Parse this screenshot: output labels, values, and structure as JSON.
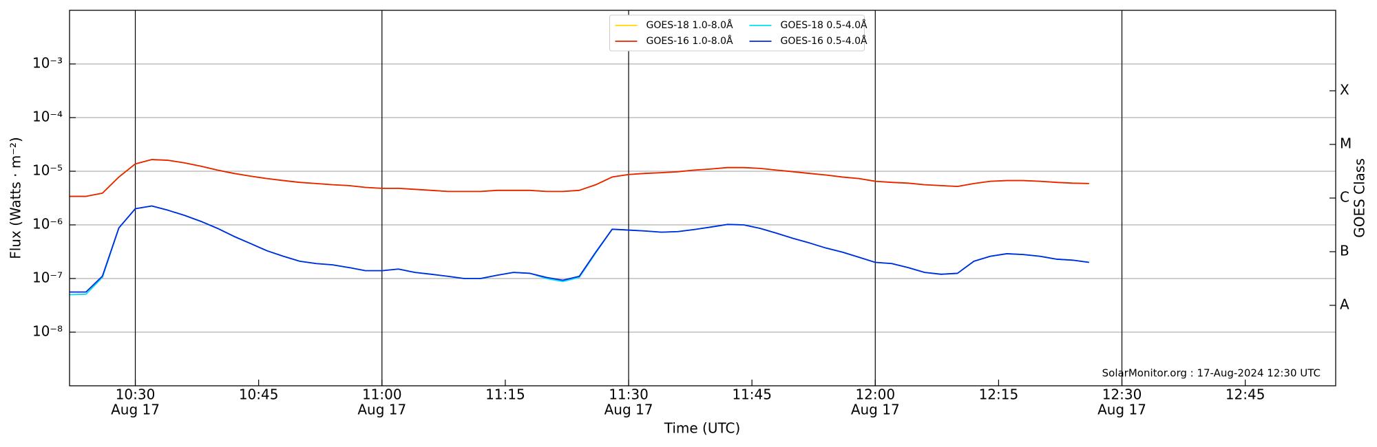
{
  "chart_data": {
    "type": "line",
    "ylabel": "Flux (Watts · m⁻²)",
    "xlabel": "Time (UTC)",
    "y2label": "GOES Class",
    "annotation": "SolarMonitor.org : 17-Aug-2024 12:30 UTC",
    "yscale": "log",
    "grid": true,
    "legend": "upper center",
    "xlim": [
      "10:22",
      "12:56"
    ],
    "xticks": [
      "10:30",
      "10:45",
      "11:00",
      "11:15",
      "11:30",
      "11:45",
      "12:00",
      "12:15",
      "12:30",
      "12:45"
    ],
    "xtick_dates": [
      "Aug 17",
      null,
      "Aug 17",
      null,
      "Aug 17",
      null,
      "Aug 17",
      null,
      "Aug 17",
      null
    ],
    "ylim": [
      1e-09,
      0.01
    ],
    "yticks": [
      {
        "value": 1e-08,
        "label": "10⁻⁸"
      },
      {
        "value": 1e-07,
        "label": "10⁻⁷"
      },
      {
        "value": 1e-06,
        "label": "10⁻⁶"
      },
      {
        "value": 1e-05,
        "label": "10⁻⁵"
      },
      {
        "value": 0.0001,
        "label": "10⁻⁴"
      },
      {
        "value": 0.001,
        "label": "10⁻³"
      }
    ],
    "y2lim": [
      1e-09,
      0.01
    ],
    "y2ticks": [
      {
        "value": 3.1623e-08,
        "label": "A"
      },
      {
        "value": 3.1623e-07,
        "label": "B"
      },
      {
        "value": 3.1623e-06,
        "label": "C"
      },
      {
        "value": 3.1623e-05,
        "label": "M"
      },
      {
        "value": 0.00031623,
        "label": "X"
      }
    ],
    "x": [
      "10:22",
      "10:24",
      "10:26",
      "10:28",
      "10:30",
      "10:32",
      "10:34",
      "10:36",
      "10:38",
      "10:40",
      "10:42",
      "10:44",
      "10:46",
      "10:48",
      "10:50",
      "10:52",
      "10:54",
      "10:56",
      "10:58",
      "11:00",
      "11:02",
      "11:04",
      "11:06",
      "11:08",
      "11:10",
      "11:12",
      "11:14",
      "11:16",
      "11:18",
      "11:20",
      "11:22",
      "11:24",
      "11:26",
      "11:28",
      "11:30",
      "11:32",
      "11:34",
      "11:36",
      "11:38",
      "11:40",
      "11:42",
      "11:44",
      "11:46",
      "11:48",
      "11:50",
      "11:52",
      "11:54",
      "11:56",
      "11:58",
      "12:00",
      "12:02",
      "12:04",
      "12:06",
      "12:08",
      "12:10",
      "12:12",
      "12:14",
      "12:16",
      "12:18",
      "12:20",
      "12:22",
      "12:24",
      "12:26"
    ],
    "series": [
      {
        "name": "GOES-18 1.0-8.0Å",
        "color": "#ffd700",
        "values": [
          3.4e-06,
          3.4e-06,
          3.9e-06,
          7.8e-06,
          1.37e-05,
          1.65e-05,
          1.6e-05,
          1.43e-05,
          1.24e-05,
          1.05e-05,
          9.1e-06,
          8.1e-06,
          7.3e-06,
          6.7e-06,
          6.2e-06,
          5.9e-06,
          5.6e-06,
          5.4e-06,
          5e-06,
          4.8e-06,
          4.8e-06,
          4.6e-06,
          4.4e-06,
          4.2e-06,
          4.2e-06,
          4.2e-06,
          4.4e-06,
          4.4e-06,
          4.4e-06,
          4.2e-06,
          4.2e-06,
          4.4e-06,
          5.6e-06,
          7.8e-06,
          8.7e-06,
          9.1e-06,
          9.4e-06,
          9.8e-06,
          1.05e-05,
          1.1e-05,
          1.17e-05,
          1.17e-05,
          1.13e-05,
          1.05e-05,
          9.8e-06,
          9.1e-06,
          8.5e-06,
          7.8e-06,
          7.3e-06,
          6.5e-06,
          6.2e-06,
          6e-06,
          5.6e-06,
          5.4e-06,
          5.2e-06,
          5.9e-06,
          6.5e-06,
          6.7e-06,
          6.7e-06,
          6.5e-06,
          6.2e-06,
          6e-06,
          5.9e-06
        ]
      },
      {
        "name": "GOES-16 1.0-8.0Å",
        "color": "#e82000",
        "values": [
          3.4e-06,
          3.4e-06,
          3.9e-06,
          7.8e-06,
          1.37e-05,
          1.65e-05,
          1.6e-05,
          1.43e-05,
          1.24e-05,
          1.05e-05,
          9.1e-06,
          8.1e-06,
          7.3e-06,
          6.7e-06,
          6.2e-06,
          5.9e-06,
          5.6e-06,
          5.4e-06,
          5e-06,
          4.8e-06,
          4.8e-06,
          4.6e-06,
          4.4e-06,
          4.2e-06,
          4.2e-06,
          4.2e-06,
          4.4e-06,
          4.4e-06,
          4.4e-06,
          4.2e-06,
          4.2e-06,
          4.4e-06,
          5.6e-06,
          7.8e-06,
          8.7e-06,
          9.1e-06,
          9.4e-06,
          9.8e-06,
          1.05e-05,
          1.1e-05,
          1.17e-05,
          1.17e-05,
          1.13e-05,
          1.05e-05,
          9.8e-06,
          9.1e-06,
          8.5e-06,
          7.8e-06,
          7.3e-06,
          6.5e-06,
          6.2e-06,
          6e-06,
          5.6e-06,
          5.4e-06,
          5.2e-06,
          5.9e-06,
          6.5e-06,
          6.7e-06,
          6.7e-06,
          6.5e-06,
          6.2e-06,
          6e-06,
          5.9e-06
        ]
      },
      {
        "name": "GOES-18 0.5-4.0Å",
        "color": "#00e0f0",
        "values": [
          5e-08,
          5.1e-08,
          1.05e-07,
          8.7e-07,
          2e-06,
          2.25e-06,
          1.87e-06,
          1.5e-06,
          1.16e-06,
          8.6e-07,
          6.1e-07,
          4.5e-07,
          3.3e-07,
          2.6e-07,
          2.1e-07,
          1.9e-07,
          1.8e-07,
          1.6e-07,
          1.4e-07,
          1.4e-07,
          1.5e-07,
          1.3e-07,
          1.2e-07,
          1.1e-07,
          1e-07,
          1e-07,
          1.15e-07,
          1.3e-07,
          1.25e-07,
          1e-07,
          8.8e-08,
          1.05e-07,
          3e-07,
          8.3e-07,
          8e-07,
          7.7e-07,
          7.3e-07,
          7.5e-07,
          8.2e-07,
          9.1e-07,
          1.02e-06,
          1e-06,
          8.6e-07,
          7e-07,
          5.6e-07,
          4.6e-07,
          3.7e-07,
          3.1e-07,
          2.5e-07,
          2e-07,
          1.9e-07,
          1.6e-07,
          1.3e-07,
          1.2e-07,
          1.25e-07,
          2.1e-07,
          2.6e-07,
          2.9e-07,
          2.8e-07,
          2.6e-07,
          2.3e-07,
          2.2e-07,
          2e-07
        ]
      },
      {
        "name": "GOES-16 0.5-4.0Å",
        "color": "#0028e0",
        "values": [
          5.6e-08,
          5.6e-08,
          1.11e-07,
          8.8e-07,
          2e-06,
          2.25e-06,
          1.87e-06,
          1.5e-06,
          1.16e-06,
          8.6e-07,
          6.1e-07,
          4.5e-07,
          3.3e-07,
          2.6e-07,
          2.1e-07,
          1.9e-07,
          1.8e-07,
          1.6e-07,
          1.4e-07,
          1.4e-07,
          1.5e-07,
          1.3e-07,
          1.2e-07,
          1.1e-07,
          1e-07,
          1e-07,
          1.15e-07,
          1.3e-07,
          1.25e-07,
          1.05e-07,
          9.3e-08,
          1.1e-07,
          3.1e-07,
          8.3e-07,
          8e-07,
          7.7e-07,
          7.3e-07,
          7.5e-07,
          8.2e-07,
          9.1e-07,
          1.02e-06,
          1e-06,
          8.6e-07,
          7e-07,
          5.6e-07,
          4.6e-07,
          3.7e-07,
          3.1e-07,
          2.5e-07,
          2e-07,
          1.9e-07,
          1.6e-07,
          1.3e-07,
          1.2e-07,
          1.25e-07,
          2.1e-07,
          2.6e-07,
          2.9e-07,
          2.8e-07,
          2.6e-07,
          2.3e-07,
          2.2e-07,
          2e-07
        ]
      }
    ]
  }
}
